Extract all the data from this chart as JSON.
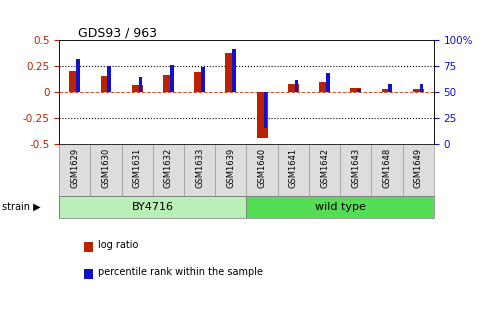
{
  "title": "GDS93 / 963",
  "samples": [
    "GSM1629",
    "GSM1630",
    "GSM1631",
    "GSM1632",
    "GSM1633",
    "GSM1639",
    "GSM1640",
    "GSM1641",
    "GSM1642",
    "GSM1643",
    "GSM1648",
    "GSM1649"
  ],
  "log_ratio": [
    0.2,
    0.16,
    0.07,
    0.17,
    0.19,
    0.38,
    -0.44,
    0.08,
    0.1,
    0.04,
    0.03,
    0.03
  ],
  "percentile_rank": [
    82,
    75,
    65,
    76,
    74,
    92,
    15,
    62,
    68,
    53,
    58,
    58
  ],
  "groups": [
    {
      "label": "BY4716",
      "start": 0,
      "end": 6,
      "color": "#b8f0b8"
    },
    {
      "label": "wild type",
      "start": 6,
      "end": 12,
      "color": "#55dd55"
    }
  ],
  "bar_color_red": "#bb2200",
  "bar_color_blue": "#1111cc",
  "ylim_left": [
    -0.5,
    0.5
  ],
  "ylim_right": [
    0,
    100
  ],
  "yticks_left": [
    -0.5,
    -0.25,
    0.0,
    0.25,
    0.5
  ],
  "yticks_right": [
    0,
    25,
    50,
    75,
    100
  ],
  "hlines_dotted": [
    -0.25,
    0.25
  ],
  "hline_dashed": 0.0,
  "legend_log_ratio": "log ratio",
  "legend_percentile": "percentile rank within the sample",
  "strain_label": "strain"
}
